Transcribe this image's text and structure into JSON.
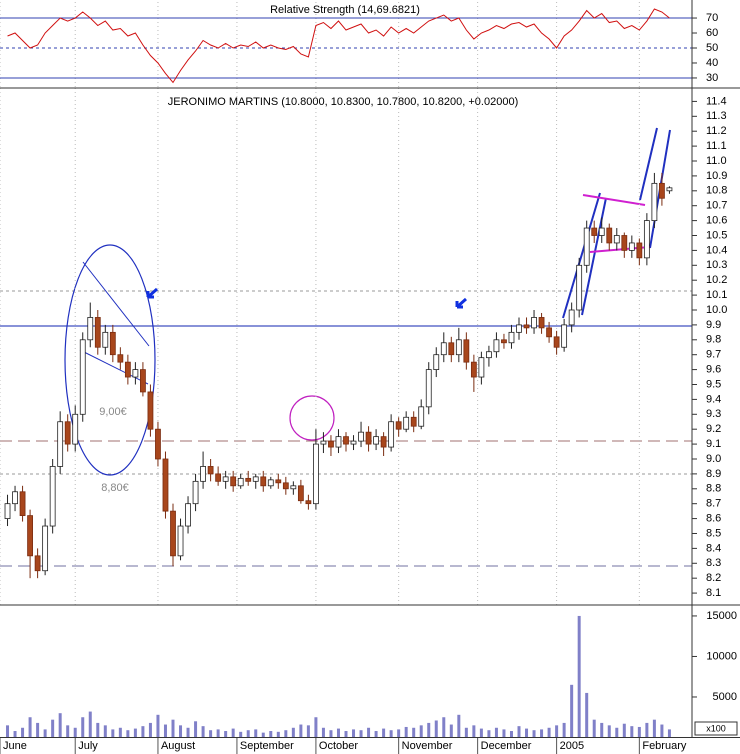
{
  "chart_data": [
    {
      "type": "line",
      "title": "Relative Strength (14,69.6821)",
      "color": "#d01010",
      "xlim": [
        -1,
        91
      ],
      "ylim": [
        23.3,
        80.7
      ],
      "yticks": [
        30,
        40,
        50,
        60,
        70
      ],
      "values": [
        58,
        60,
        55,
        50,
        52,
        60,
        65,
        70,
        68,
        70,
        74,
        70,
        65,
        68,
        62,
        63,
        58,
        60,
        52,
        45,
        40,
        33,
        27,
        35,
        42,
        48,
        55,
        52,
        50,
        53,
        50,
        52,
        51,
        54,
        50,
        52,
        50,
        49,
        51,
        46,
        44,
        65,
        67,
        63,
        68,
        62,
        64,
        66,
        60,
        62,
        58,
        64,
        60,
        63,
        60,
        64,
        68,
        70,
        72,
        68,
        70,
        62,
        56,
        60,
        62,
        65,
        63,
        66,
        67,
        64,
        66,
        60,
        56,
        50,
        58,
        62,
        68,
        75,
        70,
        73,
        67,
        68,
        63,
        65,
        62,
        68,
        76,
        74,
        70
      ]
    },
    {
      "type": "candlestick",
      "title": "JERONIMO MARTINS (10.8000, 10.8300, 10.7800, 10.8200, +0.02000)",
      "xlim": [
        -1,
        91
      ],
      "ylim": [
        8.02,
        11.49
      ],
      "yticks": [
        8.1,
        8.2,
        8.3,
        8.4,
        8.5,
        8.6,
        8.7,
        8.8,
        8.9,
        {
          "value": 9,
          "label": "9.0"
        },
        9.1,
        9.2,
        9.3,
        9.4,
        9.5,
        9.6,
        9.7,
        9.8,
        9.9,
        {
          "value": 10,
          "label": "10.0"
        },
        10.1,
        10.2,
        10.3,
        10.4,
        10.5,
        10.6,
        10.7,
        10.8,
        10.9,
        {
          "value": 11,
          "label": "11.0"
        },
        11.1,
        11.2,
        11.3,
        11.4
      ],
      "annotations": [
        "9,00€",
        "8,80€"
      ],
      "open": [
        8.6,
        8.7,
        8.78,
        8.62,
        8.35,
        8.25,
        8.55,
        8.95,
        9.25,
        9.1,
        9.3,
        9.8,
        9.95,
        9.75,
        9.85,
        9.7,
        9.65,
        9.55,
        9.6,
        9.45,
        9.2,
        9.0,
        8.65,
        8.35,
        8.55,
        8.7,
        8.85,
        8.95,
        8.9,
        8.85,
        8.88,
        8.82,
        8.87,
        8.85,
        8.88,
        8.82,
        8.86,
        8.84,
        8.8,
        8.82,
        8.72,
        8.7,
        9.1,
        9.12,
        9.08,
        9.15,
        9.1,
        9.12,
        9.18,
        9.1,
        9.15,
        9.08,
        9.25,
        9.2,
        9.28,
        9.22,
        9.35,
        9.6,
        9.7,
        9.78,
        9.7,
        9.8,
        9.65,
        9.55,
        9.68,
        9.72,
        9.8,
        9.78,
        9.85,
        9.9,
        9.88,
        9.95,
        9.88,
        9.82,
        9.75,
        9.9,
        10.0,
        10.3,
        10.55,
        10.5,
        10.55,
        10.45,
        10.5,
        10.4,
        10.45,
        10.35,
        10.6,
        10.85,
        10.8
      ],
      "high": [
        8.76,
        8.82,
        8.82,
        8.66,
        8.4,
        8.6,
        9.0,
        9.32,
        9.3,
        9.36,
        9.85,
        10.05,
        10.0,
        9.9,
        9.9,
        9.75,
        9.7,
        9.65,
        9.65,
        9.5,
        9.25,
        9.05,
        8.7,
        8.6,
        8.75,
        8.9,
        9.05,
        9.0,
        8.95,
        8.92,
        8.92,
        8.9,
        8.92,
        8.9,
        8.92,
        8.88,
        8.9,
        8.88,
        8.85,
        8.86,
        8.76,
        9.2,
        9.18,
        9.16,
        9.2,
        9.18,
        9.16,
        9.25,
        9.22,
        9.2,
        9.18,
        9.3,
        9.28,
        9.32,
        9.32,
        9.4,
        9.65,
        9.75,
        9.85,
        9.82,
        9.88,
        9.85,
        9.7,
        9.72,
        9.76,
        9.85,
        9.84,
        9.9,
        9.95,
        9.95,
        10.0,
        9.98,
        9.92,
        9.86,
        9.94,
        10.05,
        10.35,
        10.6,
        10.6,
        10.62,
        10.58,
        10.55,
        10.52,
        10.5,
        10.48,
        10.65,
        10.92,
        10.92,
        10.83
      ],
      "low": [
        8.55,
        8.65,
        8.58,
        8.2,
        8.2,
        8.22,
        8.5,
        8.9,
        9.05,
        9.05,
        9.25,
        9.75,
        9.7,
        9.7,
        9.65,
        9.6,
        9.5,
        9.5,
        9.42,
        9.15,
        8.95,
        8.6,
        8.28,
        8.32,
        8.5,
        8.65,
        8.8,
        8.85,
        8.82,
        8.8,
        8.78,
        8.8,
        8.82,
        8.8,
        8.78,
        8.8,
        8.8,
        8.76,
        8.76,
        8.7,
        8.66,
        8.66,
        9.04,
        9.02,
        9.04,
        9.05,
        9.06,
        9.08,
        9.05,
        9.06,
        9.02,
        9.05,
        9.15,
        9.18,
        9.18,
        9.2,
        9.3,
        9.55,
        9.65,
        9.65,
        9.65,
        9.6,
        9.45,
        9.5,
        9.62,
        9.68,
        9.74,
        9.74,
        9.8,
        9.84,
        9.84,
        9.84,
        9.78,
        9.7,
        9.72,
        9.85,
        9.95,
        10.25,
        10.45,
        10.45,
        10.4,
        10.4,
        10.35,
        10.35,
        10.3,
        10.3,
        10.55,
        10.7,
        10.78
      ],
      "close": [
        8.7,
        8.78,
        8.62,
        8.35,
        8.25,
        8.55,
        8.95,
        9.25,
        9.1,
        9.3,
        9.8,
        9.95,
        9.75,
        9.85,
        9.7,
        9.65,
        9.55,
        9.6,
        9.45,
        9.2,
        9.0,
        8.65,
        8.35,
        8.55,
        8.7,
        8.85,
        8.95,
        8.9,
        8.85,
        8.88,
        8.82,
        8.87,
        8.85,
        8.88,
        8.82,
        8.86,
        8.84,
        8.8,
        8.82,
        8.72,
        8.7,
        9.1,
        9.12,
        9.08,
        9.15,
        9.1,
        9.12,
        9.18,
        9.1,
        9.15,
        9.08,
        9.25,
        9.2,
        9.28,
        9.22,
        9.35,
        9.6,
        9.7,
        9.78,
        9.7,
        9.8,
        9.65,
        9.55,
        9.68,
        9.72,
        9.8,
        9.78,
        9.85,
        9.9,
        9.88,
        9.95,
        9.88,
        9.82,
        9.75,
        9.9,
        10.0,
        10.3,
        10.55,
        10.5,
        10.55,
        10.45,
        10.5,
        10.4,
        10.45,
        10.35,
        10.6,
        10.85,
        10.75,
        10.82
      ]
    },
    {
      "type": "bar",
      "color": "#8080c8",
      "unit_label": "x100",
      "xlim": [
        -1,
        91
      ],
      "ylim": [
        0,
        16350
      ],
      "yticks": [
        5000,
        10000,
        15000
      ],
      "xticks": [
        {
          "value": -1,
          "label": "June"
        },
        {
          "value": 9,
          "label": "July"
        },
        {
          "value": 20,
          "label": "August"
        },
        {
          "value": 30.5,
          "label": "September"
        },
        {
          "value": 41,
          "label": "October"
        },
        {
          "value": 52,
          "label": "November"
        },
        {
          "value": 62.5,
          "label": "December"
        },
        {
          "value": 73,
          "label": "2005"
        },
        {
          "value": 84,
          "label": "February"
        }
      ],
      "values": [
        1500,
        800,
        1200,
        2500,
        1800,
        1000,
        2200,
        3000,
        1500,
        1200,
        2500,
        3200,
        1800,
        1500,
        1000,
        1200,
        900,
        1100,
        1400,
        1800,
        2800,
        1600,
        2200,
        1500,
        1200,
        2000,
        1400,
        900,
        1000,
        800,
        1100,
        700,
        900,
        1000,
        600,
        800,
        700,
        900,
        1200,
        1600,
        1500,
        2500,
        1200,
        900,
        1100,
        800,
        1000,
        900,
        1200,
        800,
        1100,
        900,
        1000,
        1300,
        1200,
        1500,
        1800,
        2100,
        2500,
        1600,
        2800,
        1200,
        1500,
        1100,
        900,
        1200,
        1000,
        800,
        1400,
        1100,
        900,
        1000,
        1200,
        1500,
        1800,
        6500,
        15000,
        5500,
        2200,
        1800,
        1500,
        1200,
        1700,
        1400,
        1300,
        1800,
        2200,
        1600,
        1000
      ]
    }
  ]
}
